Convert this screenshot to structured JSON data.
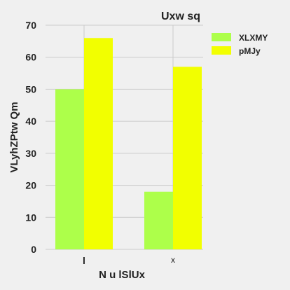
{
  "chart_data": {
    "type": "bar",
    "title": "Uxw sq",
    "xlabel": "N u lSlUx",
    "ylabel": "VLyhZPtw Qm",
    "categories": [
      "l",
      "x"
    ],
    "series": [
      {
        "name": "XLXMY",
        "values": [
          50,
          18
        ],
        "color": "#adff4a"
      },
      {
        "name": "pMJy",
        "values": [
          66,
          57
        ],
        "color": "#f2ff00"
      }
    ],
    "ylim": [
      0,
      70
    ],
    "yticks": [
      0,
      10,
      20,
      30,
      40,
      50,
      60,
      70
    ],
    "grid": true,
    "legend_position": "top-right"
  }
}
